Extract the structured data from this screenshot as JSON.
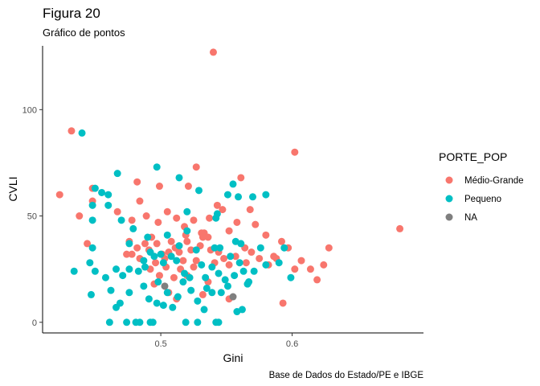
{
  "chart_data": {
    "type": "scatter",
    "title": "Figura 20",
    "subtitle": "Gráfico de pontos",
    "xlabel": "Gini",
    "ylabel": "CVLI",
    "caption": "Base de Dados do Estado/PE e IBGE",
    "xlim": [
      0.41,
      0.7
    ],
    "ylim": [
      -5,
      130
    ],
    "x_ticks": [
      0.5,
      0.6
    ],
    "x_tick_labels": [
      "0.5",
      "0.6"
    ],
    "y_ticks": [
      0,
      50,
      100
    ],
    "y_tick_labels": [
      "0",
      "50",
      "100"
    ],
    "grid": false,
    "legend": {
      "title": "PORTE_POP",
      "position": "right",
      "entries": [
        {
          "label": "Médio-Grande",
          "color": "#F8766D"
        },
        {
          "label": "Pequeno",
          "color": "#00BFC4"
        },
        {
          "label": "NA",
          "color": "#7F7F7F"
        }
      ]
    },
    "series": [
      {
        "name": "Médio-Grande",
        "color": "#F8766D",
        "points": [
          [
            0.54,
            127
          ],
          [
            0.432,
            90
          ],
          [
            0.602,
            80
          ],
          [
            0.682,
            44
          ],
          [
            0.423,
            60
          ],
          [
            0.527,
            73
          ],
          [
            0.448,
            63
          ],
          [
            0.448,
            57
          ],
          [
            0.521,
            64
          ],
          [
            0.561,
            68
          ],
          [
            0.482,
            66
          ],
          [
            0.499,
            64
          ],
          [
            0.467,
            52
          ],
          [
            0.484,
            57
          ],
          [
            0.478,
            48
          ],
          [
            0.489,
            50
          ],
          [
            0.498,
            47
          ],
          [
            0.505,
            52
          ],
          [
            0.512,
            49
          ],
          [
            0.518,
            45
          ],
          [
            0.525,
            48
          ],
          [
            0.531,
            42
          ],
          [
            0.537,
            49
          ],
          [
            0.543,
            55
          ],
          [
            0.547,
            53
          ],
          [
            0.552,
            43
          ],
          [
            0.558,
            47
          ],
          [
            0.568,
            53
          ],
          [
            0.572,
            46
          ],
          [
            0.58,
            41
          ],
          [
            0.438,
            50
          ],
          [
            0.444,
            37
          ],
          [
            0.478,
            32
          ],
          [
            0.482,
            35
          ],
          [
            0.484,
            30
          ],
          [
            0.488,
            37
          ],
          [
            0.491,
            34
          ],
          [
            0.493,
            40
          ],
          [
            0.497,
            37
          ],
          [
            0.501,
            32
          ],
          [
            0.503,
            30
          ],
          [
            0.506,
            33
          ],
          [
            0.508,
            38
          ],
          [
            0.511,
            35
          ],
          [
            0.514,
            33
          ],
          [
            0.517,
            29
          ],
          [
            0.52,
            38
          ],
          [
            0.523,
            34
          ],
          [
            0.527,
            29
          ],
          [
            0.53,
            36
          ],
          [
            0.533,
            42
          ],
          [
            0.536,
            40
          ],
          [
            0.538,
            34
          ],
          [
            0.541,
            28
          ],
          [
            0.544,
            33
          ],
          [
            0.548,
            30
          ],
          [
            0.552,
            27
          ],
          [
            0.557,
            31
          ],
          [
            0.564,
            35
          ],
          [
            0.569,
            33
          ],
          [
            0.575,
            30
          ],
          [
            0.582,
            27
          ],
          [
            0.588,
            30
          ],
          [
            0.592,
            38
          ],
          [
            0.597,
            35
          ],
          [
            0.602,
            25
          ],
          [
            0.607,
            29
          ],
          [
            0.614,
            25
          ],
          [
            0.619,
            20
          ],
          [
            0.624,
            27
          ],
          [
            0.628,
            35
          ],
          [
            0.593,
            9
          ],
          [
            0.474,
            32
          ],
          [
            0.476,
            38
          ],
          [
            0.492,
            25
          ],
          [
            0.496,
            28
          ],
          [
            0.499,
            22
          ],
          [
            0.504,
            26
          ],
          [
            0.51,
            21
          ],
          [
            0.515,
            25
          ],
          [
            0.52,
            22
          ],
          [
            0.525,
            26
          ],
          [
            0.532,
            13
          ],
          [
            0.536,
            19
          ],
          [
            0.495,
            18
          ],
          [
            0.506,
            14
          ],
          [
            0.512,
            11
          ],
          [
            0.552,
            11
          ],
          [
            0.519,
            41
          ],
          [
            0.532,
            40
          ],
          [
            0.565,
            28
          ],
          [
            0.586,
            31
          ]
        ]
      },
      {
        "name": "Pequeno",
        "color": "#00BFC4",
        "points": [
          [
            0.44,
            89
          ],
          [
            0.497,
            73
          ],
          [
            0.467,
            70
          ],
          [
            0.514,
            68
          ],
          [
            0.455,
            61
          ],
          [
            0.45,
            63
          ],
          [
            0.448,
            55
          ],
          [
            0.46,
            55
          ],
          [
            0.46,
            60
          ],
          [
            0.529,
            62
          ],
          [
            0.555,
            65
          ],
          [
            0.559,
            59
          ],
          [
            0.57,
            59
          ],
          [
            0.58,
            60
          ],
          [
            0.543,
            51
          ],
          [
            0.551,
            60
          ],
          [
            0.52,
            52
          ],
          [
            0.47,
            48
          ],
          [
            0.479,
            44
          ],
          [
            0.448,
            48
          ],
          [
            0.476,
            37
          ],
          [
            0.49,
            40
          ],
          [
            0.505,
            41
          ],
          [
            0.52,
            43
          ],
          [
            0.542,
            49
          ],
          [
            0.545,
            35
          ],
          [
            0.541,
            35
          ],
          [
            0.557,
            38
          ],
          [
            0.561,
            37
          ],
          [
            0.576,
            35
          ],
          [
            0.594,
            35
          ],
          [
            0.59,
            28
          ],
          [
            0.58,
            27
          ],
          [
            0.448,
            35
          ],
          [
            0.446,
            28
          ],
          [
            0.45,
            24
          ],
          [
            0.434,
            24
          ],
          [
            0.458,
            21
          ],
          [
            0.462,
            15
          ],
          [
            0.466,
            25
          ],
          [
            0.471,
            22
          ],
          [
            0.476,
            25
          ],
          [
            0.483,
            24
          ],
          [
            0.487,
            29
          ],
          [
            0.492,
            33
          ],
          [
            0.495,
            31
          ],
          [
            0.5,
            32
          ],
          [
            0.502,
            28
          ],
          [
            0.508,
            31
          ],
          [
            0.512,
            29
          ],
          [
            0.514,
            36
          ],
          [
            0.518,
            23
          ],
          [
            0.522,
            21
          ],
          [
            0.527,
            34
          ],
          [
            0.531,
            27
          ],
          [
            0.534,
            21
          ],
          [
            0.539,
            26
          ],
          [
            0.544,
            23
          ],
          [
            0.549,
            20
          ],
          [
            0.553,
            31
          ],
          [
            0.556,
            22
          ],
          [
            0.56,
            28
          ],
          [
            0.563,
            24
          ],
          [
            0.567,
            19
          ],
          [
            0.571,
            24
          ],
          [
            0.599,
            21
          ],
          [
            0.447,
            13
          ],
          [
            0.466,
            7
          ],
          [
            0.469,
            9
          ],
          [
            0.476,
            14
          ],
          [
            0.487,
            17
          ],
          [
            0.491,
            11
          ],
          [
            0.497,
            9
          ],
          [
            0.502,
            8
          ],
          [
            0.505,
            14
          ],
          [
            0.509,
            7
          ],
          [
            0.513,
            12
          ],
          [
            0.517,
            19
          ],
          [
            0.523,
            15
          ],
          [
            0.528,
            10
          ],
          [
            0.533,
            6
          ],
          [
            0.539,
            14
          ],
          [
            0.546,
            14
          ],
          [
            0.551,
            17
          ],
          [
            0.558,
            5
          ],
          [
            0.562,
            6
          ],
          [
            0.566,
            18
          ],
          [
            0.461,
            0
          ],
          [
            0.474,
            0
          ],
          [
            0.481,
            0
          ],
          [
            0.484,
            0
          ],
          [
            0.492,
            0
          ],
          [
            0.494,
            0
          ],
          [
            0.519,
            0
          ],
          [
            0.528,
            0
          ],
          [
            0.542,
            0
          ],
          [
            0.544,
            0
          ],
          [
            0.535,
            16
          ],
          [
            0.498,
            19
          ],
          [
            0.488,
            26
          ]
        ]
      },
      {
        "name": "NA",
        "color": "#7F7F7F",
        "points": [
          [
            0.503,
            17
          ],
          [
            0.555,
            12
          ]
        ]
      }
    ]
  }
}
